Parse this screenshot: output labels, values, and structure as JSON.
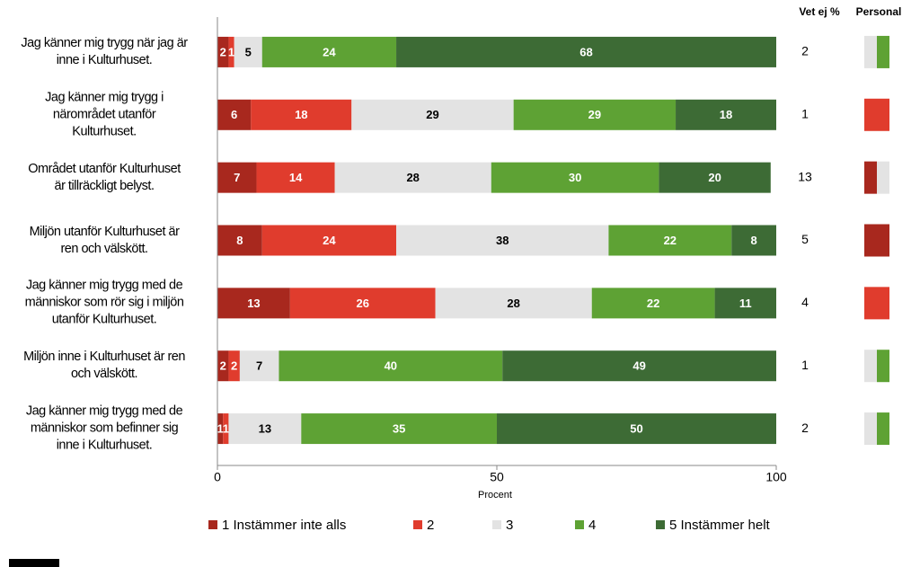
{
  "chart_data": {
    "type": "stacked-bar-horizontal",
    "categories": [
      "Jag känner mig trygg när jag är\ninne i Kulturhuset.",
      "Jag känner mig trygg i\nnärområdet utanför\nKulturhuset.",
      "Området utanför Kulturhuset\när tillräckligt belyst.",
      "Miljön utanför Kulturhuset är\nren och välskött.",
      "Jag känner mig trygg med de\nmänniskor som rör sig i miljön\nutanför Kulturhuset.",
      "Miljön inne i Kulturhuset är ren\noch välskött.",
      "Jag känner mig trygg med de\nmänniskor som befinner sig\ninne i Kulturhuset."
    ],
    "series": [
      {
        "name": "1 Instämmer inte alls",
        "color": "#a8281e",
        "label_color": "#ffffff",
        "values": [
          2,
          6,
          7,
          8,
          13,
          2,
          1
        ]
      },
      {
        "name": "2",
        "color": "#e03c2d",
        "label_color": "#ffffff",
        "values": [
          1,
          18,
          14,
          24,
          26,
          2,
          1
        ]
      },
      {
        "name": "3",
        "color": "#e3e3e3",
        "label_color": "#000000",
        "values": [
          5,
          29,
          28,
          38,
          28,
          7,
          13
        ]
      },
      {
        "name": "4",
        "color": "#5ea234",
        "label_color": "#ffffff",
        "values": [
          24,
          29,
          30,
          22,
          22,
          40,
          35
        ]
      },
      {
        "name": "5 Instämmer helt",
        "color": "#3d6b35",
        "label_color": "#ffffff",
        "values": [
          68,
          18,
          20,
          8,
          11,
          49,
          50
        ]
      }
    ],
    "xlim": [
      0,
      100
    ],
    "xticks": [
      0,
      50,
      100
    ],
    "xlabel": "Procent",
    "vet_ej_header": "Vet ej %",
    "vet_ej": [
      2,
      1,
      13,
      5,
      4,
      1,
      2
    ],
    "personal_header": "Personal",
    "personal_colors": [
      [
        "#e3e3e3",
        "#5ea234"
      ],
      [
        "#e03c2d"
      ],
      [
        "#a8281e",
        "#e3e3e3"
      ],
      [
        "#a8281e"
      ],
      [
        "#e03c2d"
      ],
      [
        "#e3e3e3",
        "#5ea234"
      ],
      [
        "#e3e3e3",
        "#5ea234"
      ]
    ]
  }
}
